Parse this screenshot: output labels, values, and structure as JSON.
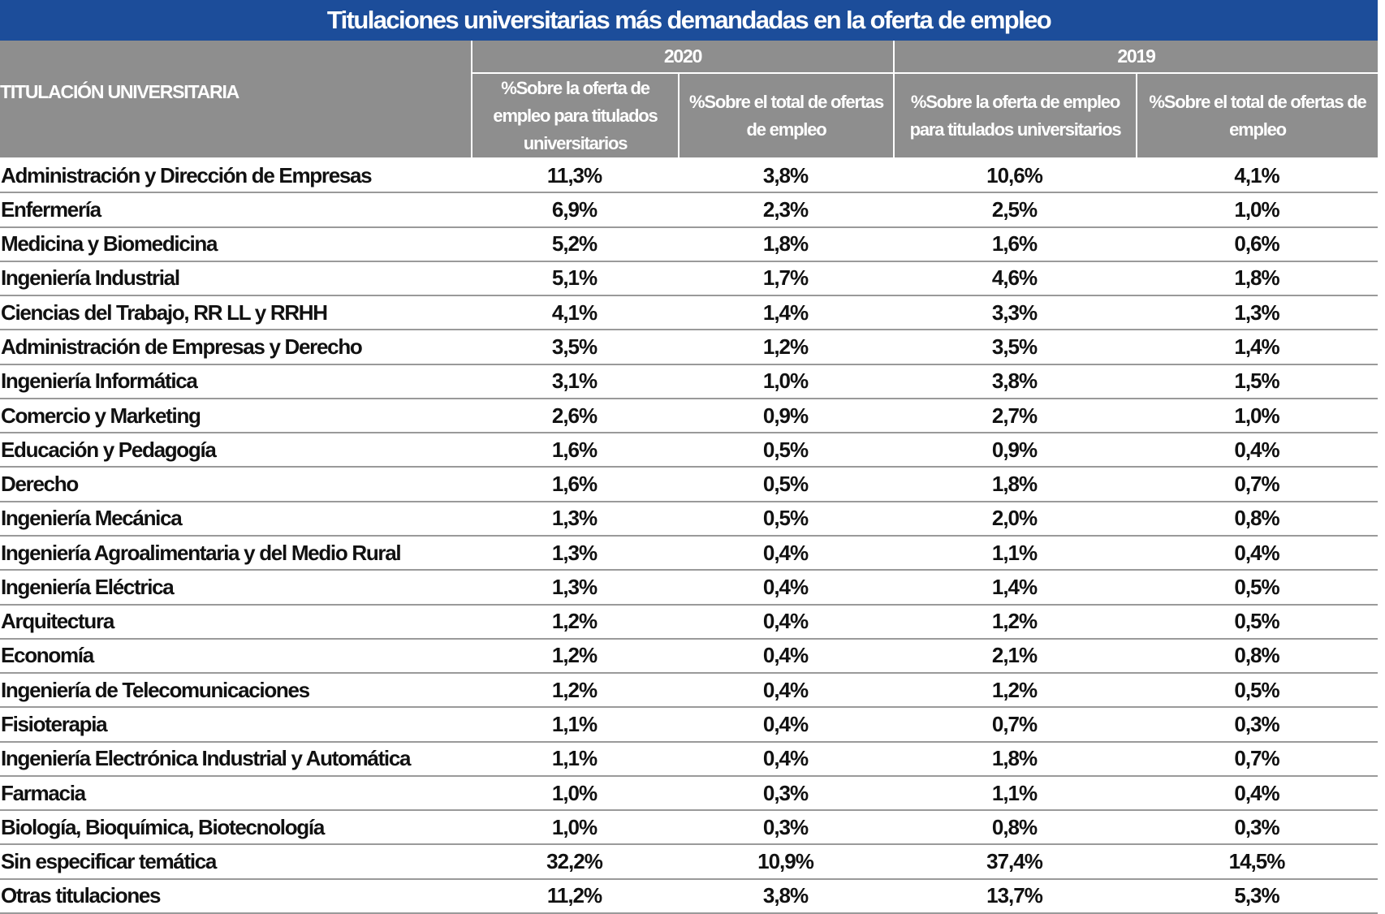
{
  "title": "Titulaciones universitarias más demandadas en la oferta de empleo",
  "header": {
    "label": "TITULACIÓN UNIVERSITARIA",
    "years": [
      "2020",
      "2019"
    ],
    "subheaders": [
      "%Sobre la oferta de empleo para titulados universitarios",
      "%Sobre el total de ofertas de empleo",
      "%Sobre la oferta de empleo para titulados universitarios",
      "%Sobre el total de ofertas de empleo"
    ]
  },
  "table": {
    "rows": [
      [
        "Administración y Dirección de Empresas",
        "11,3%",
        "3,8%",
        "10,6%",
        "4,1%"
      ],
      [
        "Enfermería",
        "6,9%",
        "2,3%",
        "2,5%",
        "1,0%"
      ],
      [
        "Medicina y Biomedicina",
        "5,2%",
        "1,8%",
        "1,6%",
        "0,6%"
      ],
      [
        "Ingeniería Industrial",
        "5,1%",
        "1,7%",
        "4,6%",
        "1,8%"
      ],
      [
        "Ciencias del Trabajo, RR LL y RRHH",
        "4,1%",
        "1,4%",
        "3,3%",
        "1,3%"
      ],
      [
        "Administración de Empresas y Derecho",
        "3,5%",
        "1,2%",
        "3,5%",
        "1,4%"
      ],
      [
        "Ingeniería Informática",
        "3,1%",
        "1,0%",
        "3,8%",
        "1,5%"
      ],
      [
        "Comercio y Marketing",
        "2,6%",
        "0,9%",
        "2,7%",
        "1,0%"
      ],
      [
        "Educación y Pedagogía",
        "1,6%",
        "0,5%",
        "0,9%",
        "0,4%"
      ],
      [
        "Derecho",
        "1,6%",
        "0,5%",
        "1,8%",
        "0,7%"
      ],
      [
        "Ingeniería Mecánica",
        "1,3%",
        "0,5%",
        "2,0%",
        "0,8%"
      ],
      [
        "Ingeniería Agroalimentaria y del Medio Rural",
        "1,3%",
        "0,4%",
        "1,1%",
        "0,4%"
      ],
      [
        "Ingeniería Eléctrica",
        "1,3%",
        "0,4%",
        "1,4%",
        "0,5%"
      ],
      [
        "Arquitectura",
        "1,2%",
        "0,4%",
        "1,2%",
        "0,5%"
      ],
      [
        "Economía",
        "1,2%",
        "0,4%",
        "2,1%",
        "0,8%"
      ],
      [
        "Ingeniería de Telecomunicaciones",
        "1,2%",
        "0,4%",
        "1,2%",
        "0,5%"
      ],
      [
        "Fisioterapia",
        "1,1%",
        "0,4%",
        "0,7%",
        "0,3%"
      ],
      [
        "Ingeniería Electrónica Industrial y Automática",
        "1,1%",
        "0,4%",
        "1,8%",
        "0,7%"
      ],
      [
        "Farmacia",
        "1,0%",
        "0,3%",
        "1,1%",
        "0,4%"
      ],
      [
        "Biología, Bioquímica, Biotecnología",
        "1,0%",
        "0,3%",
        "0,8%",
        "0,3%"
      ],
      [
        "Sin especificar temática",
        "32,2%",
        "10,9%",
        "37,4%",
        "14,5%"
      ],
      [
        "Otras titulaciones",
        "11,2%",
        "3,8%",
        "13,7%",
        "5,3%"
      ]
    ]
  }
}
